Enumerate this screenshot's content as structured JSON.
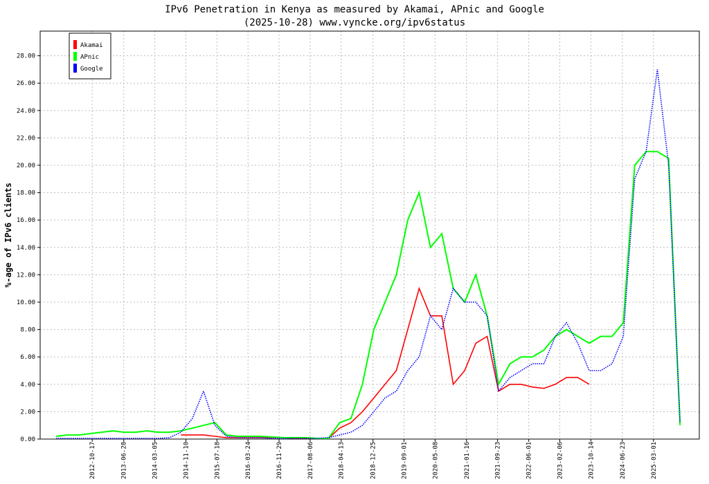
{
  "chart_data": {
    "type": "line",
    "title": "IPv6 Penetration in Kenya as measured by Akamai, APnic and Google",
    "subtitle": "(2025-10-28) www.vyncke.org/ipv6status",
    "y_label": "%-age of IPv6 clients",
    "x": [
      "2012-01-01",
      "2012-04-01",
      "2012-07-01",
      "2012-10-01",
      "2013-01-01",
      "2013-04-01",
      "2013-07-01",
      "2013-10-01",
      "2014-01-01",
      "2014-04-01",
      "2014-07-01",
      "2014-10-01",
      "2015-01-01",
      "2015-04-01",
      "2015-07-01",
      "2015-10-01",
      "2016-01-01",
      "2016-04-01",
      "2016-07-01",
      "2016-10-01",
      "2017-01-01",
      "2017-04-01",
      "2017-07-01",
      "2017-10-01",
      "2018-01-01",
      "2018-04-01",
      "2018-07-01",
      "2018-10-01",
      "2019-01-01",
      "2019-04-01",
      "2019-07-01",
      "2019-10-01",
      "2020-01-01",
      "2020-04-01",
      "2020-07-01",
      "2020-10-01",
      "2021-01-01",
      "2021-04-01",
      "2021-07-01",
      "2021-10-01",
      "2022-01-01",
      "2022-04-01",
      "2022-07-01",
      "2022-10-01",
      "2023-01-01",
      "2023-04-01",
      "2023-07-01",
      "2023-10-01",
      "2024-01-01",
      "2024-04-01",
      "2024-07-01",
      "2024-10-01",
      "2025-01-01",
      "2025-04-01",
      "2025-07-01",
      "2025-10-01"
    ],
    "series": [
      {
        "name": "Akamai",
        "color": "#ff0000",
        "values": [
          null,
          null,
          null,
          null,
          null,
          null,
          null,
          null,
          null,
          null,
          null,
          0.3,
          0.3,
          0.3,
          0.2,
          0.1,
          0.1,
          0.1,
          0.1,
          0.1,
          0.1,
          0.05,
          0.05,
          0.05,
          0.05,
          0.8,
          1.2,
          2,
          3,
          4,
          5,
          8,
          11,
          9,
          9,
          4,
          5,
          7,
          7.5,
          3.5,
          4,
          4,
          3.8,
          3.7,
          4,
          4.5,
          4.5,
          4,
          null,
          null,
          null,
          null,
          null,
          null,
          null,
          null
        ]
      },
      {
        "name": "APnic",
        "color": "#00ff00",
        "values": [
          0.2,
          0.3,
          0.3,
          0.4,
          0.5,
          0.6,
          0.5,
          0.5,
          0.6,
          0.5,
          0.5,
          0.6,
          0.8,
          1.0,
          1.2,
          0.3,
          0.2,
          0.2,
          0.2,
          0.15,
          0.1,
          0.1,
          0.1,
          0.05,
          0.05,
          1.2,
          1.5,
          4,
          8,
          10,
          12,
          16,
          18,
          14,
          15,
          11,
          10,
          12,
          9,
          4,
          5.5,
          6,
          6,
          6.5,
          7.5,
          8,
          7.5,
          7,
          7.5,
          7.5,
          8.5,
          20,
          21,
          21,
          20.5,
          1
        ]
      },
      {
        "name": "Google",
        "color": "#0000ff",
        "values": [
          0.05,
          0.05,
          0.05,
          0.05,
          0.05,
          0.05,
          0.05,
          0.05,
          0.05,
          0.05,
          0.1,
          0.5,
          1.5,
          3.5,
          1.0,
          0.2,
          0.1,
          0.1,
          0.1,
          0.05,
          0.05,
          0.05,
          0.05,
          0.05,
          0.1,
          0.3,
          0.5,
          1.0,
          2,
          3,
          3.5,
          5,
          6,
          9,
          8,
          11,
          10,
          10,
          9,
          3.5,
          4.5,
          5,
          5.5,
          5.5,
          7.5,
          8.5,
          7,
          5,
          5,
          5.5,
          7.5,
          19,
          21,
          27,
          20,
          1.2
        ]
      }
    ],
    "xlim": [
      "2011-08-25",
      "2026-03-05"
    ],
    "xticks": [
      "2012-10-17",
      "2013-06-28",
      "2014-03-05",
      "2014-11-10",
      "2015-07-18",
      "2016-03-24",
      "2016-11-29",
      "2017-08-06",
      "2018-04-13",
      "2018-12-25",
      "2019-09-01",
      "2020-05-08",
      "2021-01-16",
      "2021-09-23",
      "2022-06-01",
      "2023-02-06",
      "2023-10-14",
      "2024-06-23",
      "2025-03-01"
    ],
    "ylim": [
      0,
      29.8
    ],
    "yticks": [
      {
        "value": 0,
        "label": "0.00"
      },
      {
        "value": 2,
        "label": "2.00"
      },
      {
        "value": 4,
        "label": "4.00"
      },
      {
        "value": 6,
        "label": "6.00"
      },
      {
        "value": 8,
        "label": "8.00"
      },
      {
        "value": 10,
        "label": "10.00"
      },
      {
        "value": 12,
        "label": "12.00"
      },
      {
        "value": 14,
        "label": "14.00"
      },
      {
        "value": 16,
        "label": "16.00"
      },
      {
        "value": 18,
        "label": "18.00"
      },
      {
        "value": 20,
        "label": "20.00"
      },
      {
        "value": 22,
        "label": "22.00"
      },
      {
        "value": 24,
        "label": "24.00"
      },
      {
        "value": 26,
        "label": "26.00"
      },
      {
        "value": 28,
        "label": "28.00"
      }
    ],
    "grid": true,
    "legend": "top-left"
  }
}
